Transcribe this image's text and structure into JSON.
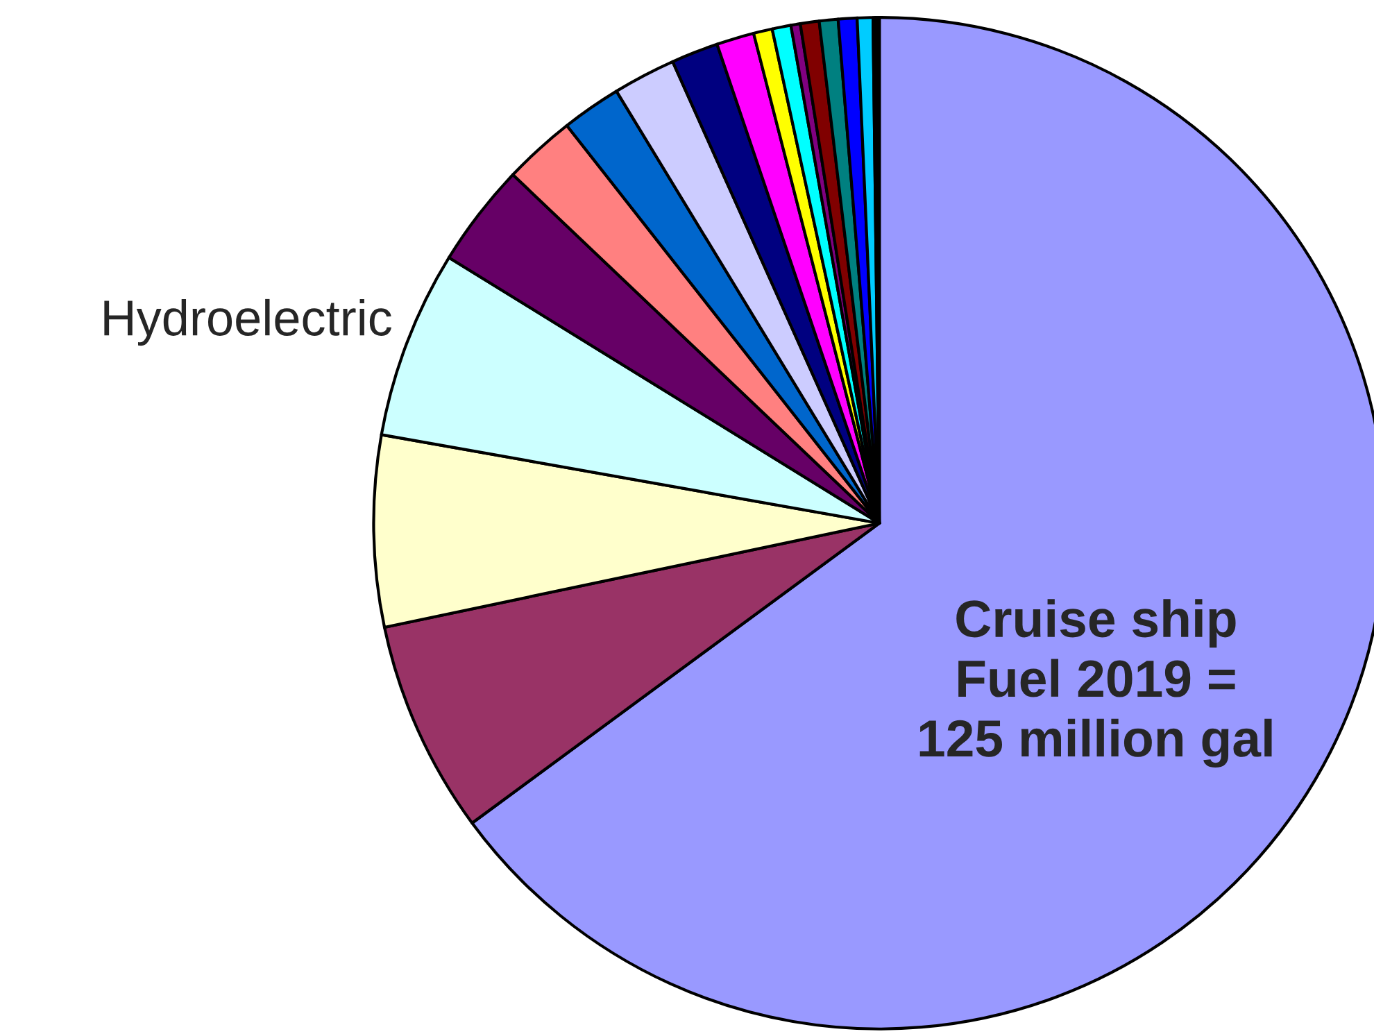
{
  "chart_data": {
    "type": "pie",
    "categories": [
      "Cruise ship\nFuel 2019 =\n125 million gal",
      null,
      null,
      "Hydroelectric",
      null,
      null,
      null,
      null,
      null,
      null,
      null,
      null,
      null,
      null,
      null,
      null,
      null,
      null
    ],
    "values": [
      64.9,
      6.8,
      6.1,
      6.0,
      3.3,
      2.3,
      1.9,
      2.0,
      1.5,
      1.2,
      0.6,
      0.6,
      0.3,
      0.6,
      0.6,
      0.6,
      0.5,
      0.2
    ],
    "colors": [
      "#9999ff",
      "#993366",
      "#ffffcc",
      "#ccffff",
      "#660066",
      "#ff8080",
      "#0066cc",
      "#ccccff",
      "#000080",
      "#ff00ff",
      "#ffff00",
      "#00ffff",
      "#800080",
      "#800000",
      "#008080",
      "#0000ff",
      "#00ccff",
      "#000000"
    ]
  }
}
